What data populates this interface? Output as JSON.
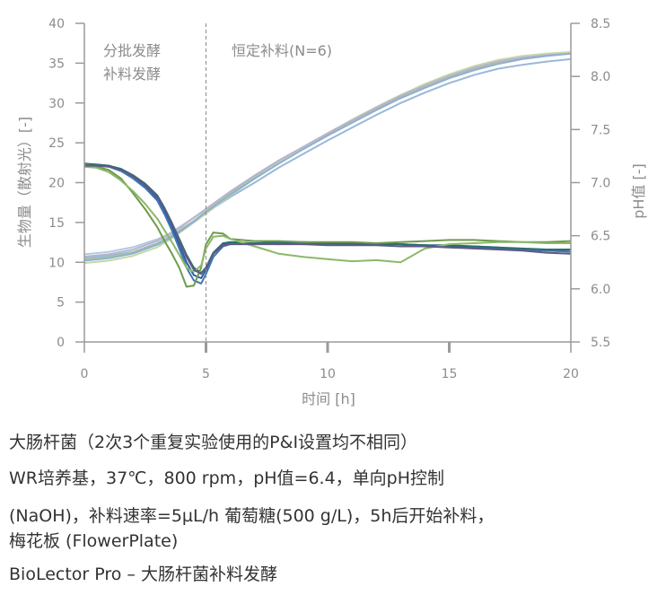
{
  "chart_data": {
    "type": "line",
    "xlabel": "时间 [h]",
    "ylabel": "生物量（散射光）[-]",
    "y2label": "pH值 [-]",
    "xlim": [
      0,
      20
    ],
    "ylim": [
      0,
      40
    ],
    "y2lim": [
      5.5,
      8.5
    ],
    "x_ticks": [
      0,
      5,
      10,
      15,
      20
    ],
    "y_ticks": [
      0,
      5,
      10,
      15,
      20,
      25,
      30,
      35,
      40
    ],
    "y2_ticks": [
      "5.5",
      "6.0",
      "6.5",
      "7.0",
      "7.5",
      "8.0",
      "8.5"
    ],
    "phase_divider_x": 5,
    "annotations": {
      "batch": [
        "分批发酵",
        "补料发酵"
      ],
      "fed": "恒定补料(N=6)"
    },
    "biomass_series": [
      {
        "color": "#9ab8d8",
        "x": [
          0,
          1,
          2,
          3,
          3.5,
          4,
          4.5,
          5,
          6,
          7,
          8,
          9,
          10,
          11,
          12,
          13,
          14,
          15,
          16,
          17,
          18,
          19,
          20
        ],
        "y": [
          10.5,
          10.8,
          11.3,
          12.4,
          13.2,
          14.2,
          15.2,
          16.2,
          18.2,
          20,
          21.9,
          23.6,
          25.3,
          26.9,
          28.5,
          30,
          31.3,
          32.5,
          33.5,
          34.3,
          34.8,
          35.2,
          35.5
        ]
      },
      {
        "color": "#b3cbe2",
        "x": [
          0,
          1,
          2,
          3,
          3.5,
          4,
          4.5,
          5,
          6,
          7,
          8,
          9,
          10,
          11,
          12,
          13,
          14,
          15,
          16,
          17,
          18,
          19,
          20
        ],
        "y": [
          11,
          11.3,
          11.9,
          12.9,
          13.6,
          14.6,
          15.6,
          16.6,
          18.7,
          20.7,
          22.6,
          24.4,
          26.1,
          27.7,
          29.3,
          30.8,
          32.1,
          33.3,
          34.3,
          35.1,
          35.6,
          36,
          36.2
        ]
      },
      {
        "color": "#a9c98f",
        "x": [
          0,
          1,
          2,
          3,
          3.5,
          4,
          4.5,
          5,
          6,
          7,
          8,
          9,
          10,
          11,
          12,
          13,
          14,
          15,
          16,
          17,
          18,
          19,
          20
        ],
        "y": [
          10.3,
          10.6,
          11.2,
          12.3,
          13.1,
          14.1,
          15.2,
          16.4,
          18.6,
          20.6,
          22.5,
          24.3,
          26,
          27.6,
          29.2,
          30.7,
          32,
          33.2,
          34.3,
          35.1,
          35.7,
          36.1,
          36.3
        ]
      },
      {
        "color": "#c4d9a8",
        "x": [
          0,
          1,
          2,
          3,
          3.5,
          4,
          4.5,
          5,
          6,
          7,
          8,
          9,
          10,
          11,
          12,
          13,
          14,
          15,
          16,
          17,
          18,
          19,
          20
        ],
        "y": [
          9.9,
          10.2,
          10.8,
          11.9,
          12.8,
          13.9,
          15,
          16.1,
          18.4,
          20.5,
          22.5,
          24.4,
          26.2,
          27.9,
          29.5,
          31,
          32.4,
          33.6,
          34.6,
          35.4,
          35.9,
          36.2,
          36.4
        ]
      },
      {
        "color": "#b9b2cc",
        "x": [
          0,
          1,
          2,
          3,
          3.5,
          4,
          4.5,
          5,
          6,
          7,
          8,
          9,
          10,
          11,
          12,
          13,
          14,
          15,
          16,
          17,
          18,
          19,
          20
        ],
        "y": [
          10.7,
          11,
          11.6,
          12.7,
          13.5,
          14.5,
          15.6,
          16.7,
          18.9,
          20.9,
          22.8,
          24.5,
          26.2,
          27.8,
          29.4,
          30.9,
          32.2,
          33.4,
          34.4,
          35.2,
          35.7,
          36,
          36.2
        ]
      },
      {
        "color": "#8fb0d2",
        "x": [
          0,
          1,
          2,
          3,
          3.5,
          4,
          4.5,
          5,
          6,
          7,
          8,
          9,
          10,
          11,
          12,
          13,
          14,
          15,
          16,
          17,
          18,
          19,
          20
        ],
        "y": [
          10.2,
          10.5,
          11.1,
          12.2,
          13,
          14,
          15.1,
          16.3,
          18.5,
          20.5,
          22.4,
          24.2,
          25.9,
          27.5,
          29.1,
          30.6,
          31.9,
          33.1,
          34.1,
          34.9,
          35.5,
          35.9,
          36.2
        ]
      }
    ],
    "ph_series": [
      {
        "color": "#2e5e9a",
        "x": [
          0,
          0.5,
          1,
          1.5,
          2,
          2.5,
          3,
          3.3,
          3.6,
          3.9,
          4.2,
          4.5,
          4.8,
          5,
          5.3,
          5.7,
          6,
          7,
          8,
          9,
          10,
          11,
          12,
          13,
          14,
          15,
          16,
          17,
          18,
          19,
          20
        ],
        "y": [
          7.18,
          7.17,
          7.16,
          7.12,
          7.05,
          6.97,
          6.85,
          6.72,
          6.58,
          6.42,
          6.25,
          6.13,
          6.1,
          6.18,
          6.33,
          6.42,
          6.43,
          6.43,
          6.44,
          6.44,
          6.43,
          6.43,
          6.43,
          6.42,
          6.41,
          6.41,
          6.4,
          6.39,
          6.37,
          6.36,
          6.35
        ]
      },
      {
        "color": "#3f78b5",
        "x": [
          0,
          0.5,
          1,
          1.5,
          2,
          2.5,
          3,
          3.3,
          3.6,
          3.9,
          4.2,
          4.5,
          4.8,
          5,
          5.3,
          5.7,
          6,
          7,
          8,
          9,
          10,
          11,
          12,
          13,
          14,
          15,
          16,
          17,
          18,
          19,
          20
        ],
        "y": [
          7.16,
          7.16,
          7.15,
          7.11,
          7.04,
          6.95,
          6.83,
          6.7,
          6.55,
          6.38,
          6.2,
          6.08,
          6.05,
          6.14,
          6.3,
          6.4,
          6.42,
          6.43,
          6.42,
          6.43,
          6.42,
          6.43,
          6.42,
          6.42,
          6.41,
          6.4,
          6.39,
          6.38,
          6.37,
          6.36,
          6.35
        ]
      },
      {
        "color": "#2b6e6e",
        "x": [
          0,
          0.5,
          1,
          1.5,
          2,
          2.5,
          3,
          3.3,
          3.6,
          3.9,
          4.2,
          4.5,
          4.8,
          5,
          5.3,
          5.7,
          6,
          7,
          8,
          9,
          10,
          11,
          12,
          13,
          14,
          15,
          16,
          17,
          18,
          19,
          20
        ],
        "y": [
          7.17,
          7.17,
          7.16,
          7.13,
          7.07,
          6.99,
          6.88,
          6.76,
          6.62,
          6.47,
          6.32,
          6.2,
          6.15,
          6.2,
          6.34,
          6.43,
          6.44,
          6.43,
          6.43,
          6.42,
          6.43,
          6.42,
          6.42,
          6.42,
          6.41,
          6.4,
          6.4,
          6.39,
          6.38,
          6.37,
          6.37
        ]
      },
      {
        "color": "#6f9a4a",
        "x": [
          0,
          0.5,
          1,
          1.5,
          2,
          2.5,
          3,
          3.3,
          3.6,
          3.9,
          4.2,
          4.5,
          4.8,
          5,
          5.3,
          5.7,
          6,
          7,
          8,
          9,
          10,
          11,
          12,
          13,
          14,
          15,
          16,
          17,
          18,
          19,
          20
        ],
        "y": [
          7.17,
          7.15,
          7.12,
          7.04,
          6.9,
          6.75,
          6.58,
          6.45,
          6.33,
          6.2,
          6.02,
          6.03,
          6.2,
          6.42,
          6.53,
          6.52,
          6.47,
          6.45,
          6.45,
          6.44,
          6.44,
          6.44,
          6.43,
          6.44,
          6.45,
          6.46,
          6.46,
          6.45,
          6.44,
          6.44,
          6.45
        ]
      },
      {
        "color": "#8cb86a",
        "x": [
          0,
          0.5,
          1,
          1.5,
          2,
          2.5,
          3,
          3.3,
          3.6,
          3.9,
          4.2,
          4.5,
          4.8,
          5,
          5.3,
          5.7,
          6,
          7,
          8,
          9,
          10,
          11,
          12,
          13,
          14,
          15,
          16,
          17,
          18,
          19,
          20
        ],
        "y": [
          7.15,
          7.14,
          7.1,
          7.02,
          6.92,
          6.8,
          6.66,
          6.55,
          6.44,
          6.32,
          6.2,
          6.16,
          6.22,
          6.38,
          6.49,
          6.5,
          6.47,
          6.4,
          6.33,
          6.3,
          6.28,
          6.26,
          6.27,
          6.25,
          6.38,
          6.42,
          6.43,
          6.44,
          6.44,
          6.43,
          6.43
        ]
      },
      {
        "color": "#5e5a86",
        "x": [
          0,
          0.5,
          1,
          1.5,
          2,
          2.5,
          3,
          3.3,
          3.6,
          3.9,
          4.2,
          4.5,
          4.8,
          5,
          5.3,
          5.7,
          6,
          7,
          8,
          9,
          10,
          11,
          12,
          13,
          14,
          15,
          16,
          17,
          18,
          19,
          20
        ],
        "y": [
          7.16,
          7.16,
          7.15,
          7.12,
          7.06,
          6.98,
          6.87,
          6.75,
          6.61,
          6.46,
          6.3,
          6.18,
          6.14,
          6.2,
          6.33,
          6.41,
          6.42,
          6.42,
          6.42,
          6.42,
          6.41,
          6.41,
          6.41,
          6.4,
          6.4,
          6.39,
          6.38,
          6.37,
          6.36,
          6.34,
          6.33
        ]
      }
    ]
  },
  "caption": {
    "line1": "大肠杆菌（2次3个重复实验使用的P&I设置均不相同）",
    "line2": "WR培养基，37℃，800 rpm，pH值=6.4，单向pH控制",
    "line3": "(NaOH)，补料速率=5µL/h 葡萄糖(500 g/L)，5h后开始补料，",
    "line4": "梅花板 (FlowerPlate)",
    "line5": "BioLector Pro – 大肠杆菌补料发酵"
  }
}
